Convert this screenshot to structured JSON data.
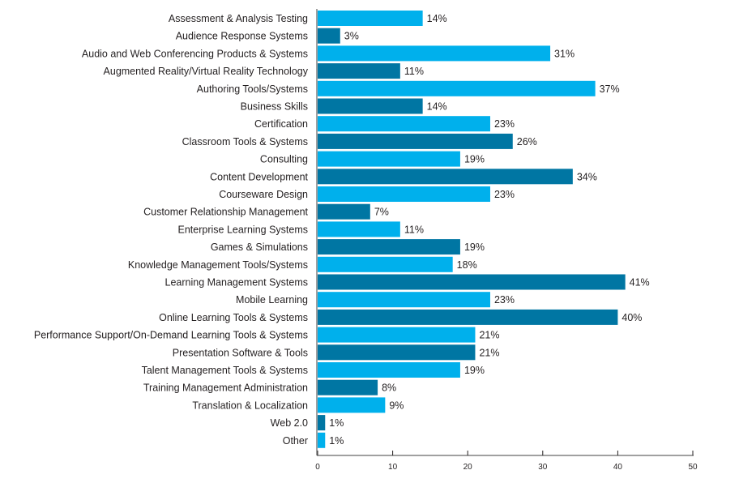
{
  "chart_data": {
    "type": "bar",
    "orientation": "horizontal",
    "title": "",
    "xlabel": "",
    "ylabel": "",
    "xlim": [
      0,
      50
    ],
    "xticks": [
      0,
      10,
      20,
      30,
      40,
      50
    ],
    "grid": false,
    "colors": {
      "light": "#00b0ec",
      "dark": "#0076a3",
      "axis": "#808080"
    },
    "categories": [
      "Assessment & Analysis Testing",
      "Audience Response Systems",
      "Audio and Web Conferencing Products & Systems",
      "Augmented Reality/Virtual Reality Technology",
      "Authoring Tools/Systems",
      "Business Skills",
      "Certification",
      "Classroom Tools & Systems",
      "Consulting",
      "Content Development",
      "Courseware Design",
      "Customer Relationship Management",
      "Enterprise Learning Systems",
      "Games & Simulations",
      "Knowledge Management Tools/Systems",
      "Learning Management Systems",
      "Mobile Learning",
      "Online Learning Tools & Systems",
      "Performance Support/On-Demand Learning Tools & Systems",
      "Presentation Software & Tools",
      "Talent Management Tools & Systems",
      "Training Management Administration",
      "Translation & Localization",
      "Web 2.0",
      "Other"
    ],
    "values": [
      14,
      3,
      31,
      11,
      37,
      14,
      23,
      26,
      19,
      34,
      23,
      7,
      11,
      19,
      18,
      41,
      23,
      40,
      21,
      21,
      19,
      8,
      9,
      1,
      1
    ],
    "value_suffix": "%"
  }
}
